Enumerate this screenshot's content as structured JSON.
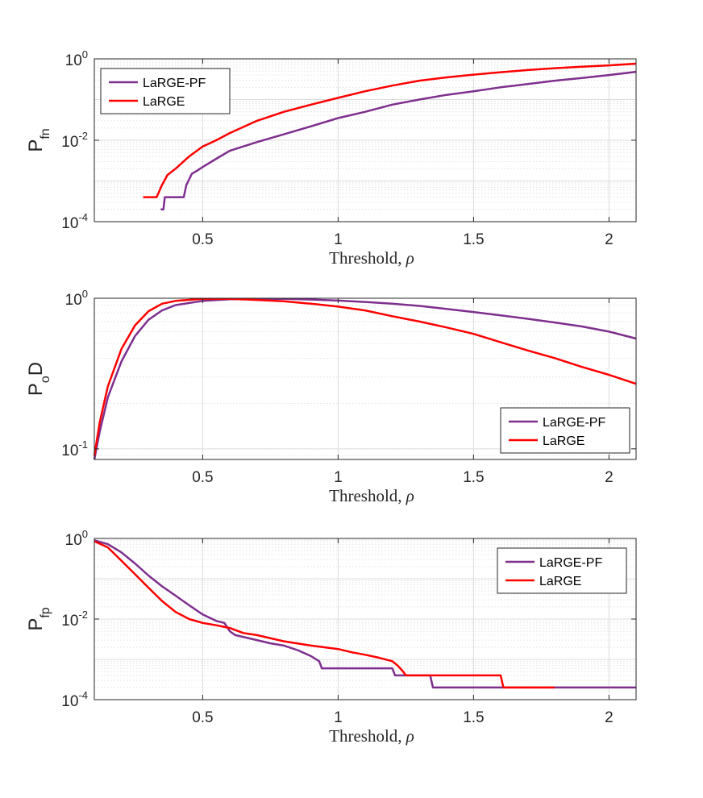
{
  "colors": {
    "purple": "#7E2F8E",
    "red": "#FF0000",
    "axis": "#262626",
    "grid": "#dcdcdc"
  },
  "chart_data": [
    {
      "type": "line",
      "yscale": "log",
      "ylabel_main": "P",
      "ylabel_sub": "fn",
      "xlabel_text": "Threshold, ",
      "xlabel_symbol": "ρ",
      "xlim": [
        0.1,
        2.1
      ],
      "ylim": [
        0.0001,
        1
      ],
      "xticks": [
        0.5,
        1,
        1.5,
        2
      ],
      "xtick_labels": [
        "0.5",
        "1",
        "1.5",
        "2"
      ],
      "yticks": [
        0.0001,
        0.01,
        1
      ],
      "ytick_bases": [
        "10",
        "10",
        "10"
      ],
      "ytick_exps": [
        "-4",
        "-2",
        "0"
      ],
      "grid": true,
      "legend_position": "top-left",
      "legend": [
        "LaRGE-PF",
        "LaRGE"
      ],
      "series": [
        {
          "name": "LaRGE-PF",
          "color": "#7E2F8E",
          "x": [
            0.345,
            0.355,
            0.36,
            0.43,
            0.44,
            0.46,
            0.48,
            0.5,
            0.55,
            0.6,
            0.7,
            0.8,
            0.9,
            1.0,
            1.1,
            1.2,
            1.3,
            1.4,
            1.5,
            1.6,
            1.7,
            1.8,
            1.9,
            2.0,
            2.1
          ],
          "y": [
            0.0002,
            0.0002,
            0.0004,
            0.0004,
            0.0008,
            0.0015,
            0.0018,
            0.0022,
            0.0035,
            0.0055,
            0.009,
            0.014,
            0.022,
            0.035,
            0.05,
            0.075,
            0.1,
            0.13,
            0.16,
            0.2,
            0.24,
            0.29,
            0.34,
            0.4,
            0.48
          ]
        },
        {
          "name": "LaRGE",
          "color": "#FF0000",
          "x": [
            0.28,
            0.33,
            0.35,
            0.37,
            0.4,
            0.45,
            0.5,
            0.55,
            0.6,
            0.7,
            0.8,
            0.9,
            1.0,
            1.1,
            1.2,
            1.3,
            1.4,
            1.5,
            1.6,
            1.7,
            1.8,
            1.9,
            2.0,
            2.1
          ],
          "y": [
            0.0004,
            0.0004,
            0.0008,
            0.0014,
            0.002,
            0.004,
            0.007,
            0.01,
            0.015,
            0.03,
            0.05,
            0.075,
            0.11,
            0.16,
            0.22,
            0.29,
            0.35,
            0.41,
            0.47,
            0.53,
            0.59,
            0.64,
            0.69,
            0.76
          ]
        }
      ]
    },
    {
      "type": "line",
      "yscale": "log",
      "ylabel_main": "P",
      "ylabel_sub": "o",
      "ylabel_after": "D",
      "xlabel_text": "Threshold, ",
      "xlabel_symbol": "ρ",
      "xlim": [
        0.1,
        2.1
      ],
      "ylim": [
        0.085,
        1
      ],
      "xticks": [
        0.5,
        1,
        1.5,
        2
      ],
      "xtick_labels": [
        "0.5",
        "1",
        "1.5",
        "2"
      ],
      "yticks": [
        0.1,
        1
      ],
      "ytick_bases": [
        "10",
        "10"
      ],
      "ytick_exps": [
        "-1",
        "0"
      ],
      "grid": true,
      "legend_position": "bottom-right",
      "legend": [
        "LaRGE-PF",
        "LaRGE"
      ],
      "series": [
        {
          "name": "LaRGE-PF",
          "color": "#7E2F8E",
          "x": [
            0.1,
            0.12,
            0.15,
            0.2,
            0.25,
            0.3,
            0.35,
            0.4,
            0.5,
            0.6,
            0.7,
            0.8,
            0.9,
            1.0,
            1.1,
            1.2,
            1.3,
            1.4,
            1.5,
            1.6,
            1.7,
            1.8,
            1.9,
            2.0,
            2.1
          ],
          "y": [
            0.085,
            0.13,
            0.22,
            0.38,
            0.56,
            0.72,
            0.83,
            0.9,
            0.96,
            0.985,
            0.99,
            0.99,
            0.98,
            0.965,
            0.945,
            0.92,
            0.89,
            0.85,
            0.81,
            0.77,
            0.73,
            0.69,
            0.65,
            0.6,
            0.54
          ]
        },
        {
          "name": "LaRGE",
          "color": "#FF0000",
          "x": [
            0.1,
            0.12,
            0.15,
            0.2,
            0.25,
            0.3,
            0.35,
            0.4,
            0.5,
            0.6,
            0.7,
            0.8,
            0.9,
            1.0,
            1.1,
            1.2,
            1.3,
            1.4,
            1.5,
            1.6,
            1.7,
            1.8,
            1.9,
            2.0,
            2.1
          ],
          "y": [
            0.09,
            0.15,
            0.26,
            0.46,
            0.66,
            0.82,
            0.92,
            0.96,
            0.99,
            0.99,
            0.975,
            0.955,
            0.92,
            0.88,
            0.83,
            0.76,
            0.7,
            0.64,
            0.58,
            0.51,
            0.45,
            0.4,
            0.35,
            0.31,
            0.27
          ]
        }
      ]
    },
    {
      "type": "line",
      "yscale": "log",
      "ylabel_main": "P",
      "ylabel_sub": "fp",
      "xlabel_text": "Threshold, ",
      "xlabel_symbol": "ρ",
      "xlim": [
        0.1,
        2.1
      ],
      "ylim": [
        0.0001,
        1
      ],
      "xticks": [
        0.5,
        1,
        1.5,
        2
      ],
      "xtick_labels": [
        "0.5",
        "1",
        "1.5",
        "2"
      ],
      "yticks": [
        0.0001,
        0.01,
        1
      ],
      "ytick_bases": [
        "10",
        "10",
        "10"
      ],
      "ytick_exps": [
        "-4",
        "-2",
        "0"
      ],
      "grid": true,
      "legend_position": "top-right",
      "legend": [
        "LaRGE-PF",
        "LaRGE"
      ],
      "series": [
        {
          "name": "LaRGE-PF",
          "color": "#7E2F8E",
          "x": [
            0.1,
            0.15,
            0.2,
            0.25,
            0.3,
            0.35,
            0.4,
            0.45,
            0.5,
            0.55,
            0.58,
            0.6,
            0.62,
            0.7,
            0.75,
            0.8,
            0.85,
            0.9,
            0.93,
            0.94,
            1.1,
            1.2,
            1.21,
            1.34,
            1.35,
            2.1
          ],
          "y": [
            0.9,
            0.72,
            0.45,
            0.24,
            0.12,
            0.065,
            0.038,
            0.022,
            0.013,
            0.009,
            0.008,
            0.005,
            0.004,
            0.003,
            0.0025,
            0.0022,
            0.0017,
            0.0012,
            0.0009,
            0.0006,
            0.0006,
            0.0006,
            0.0004,
            0.0004,
            0.0002,
            0.0002
          ]
        },
        {
          "name": "LaRGE",
          "color": "#FF0000",
          "x": [
            0.1,
            0.15,
            0.2,
            0.25,
            0.3,
            0.35,
            0.4,
            0.45,
            0.5,
            0.55,
            0.6,
            0.65,
            0.7,
            0.8,
            0.9,
            1.0,
            1.05,
            1.1,
            1.15,
            1.2,
            1.22,
            1.24,
            1.25,
            1.6,
            1.61,
            1.8
          ],
          "y": [
            0.85,
            0.6,
            0.28,
            0.13,
            0.06,
            0.028,
            0.015,
            0.01,
            0.008,
            0.007,
            0.006,
            0.0045,
            0.004,
            0.0028,
            0.0022,
            0.0018,
            0.0015,
            0.0013,
            0.0011,
            0.0009,
            0.0007,
            0.0005,
            0.0004,
            0.0004,
            0.0002,
            0.0002
          ]
        }
      ]
    }
  ]
}
